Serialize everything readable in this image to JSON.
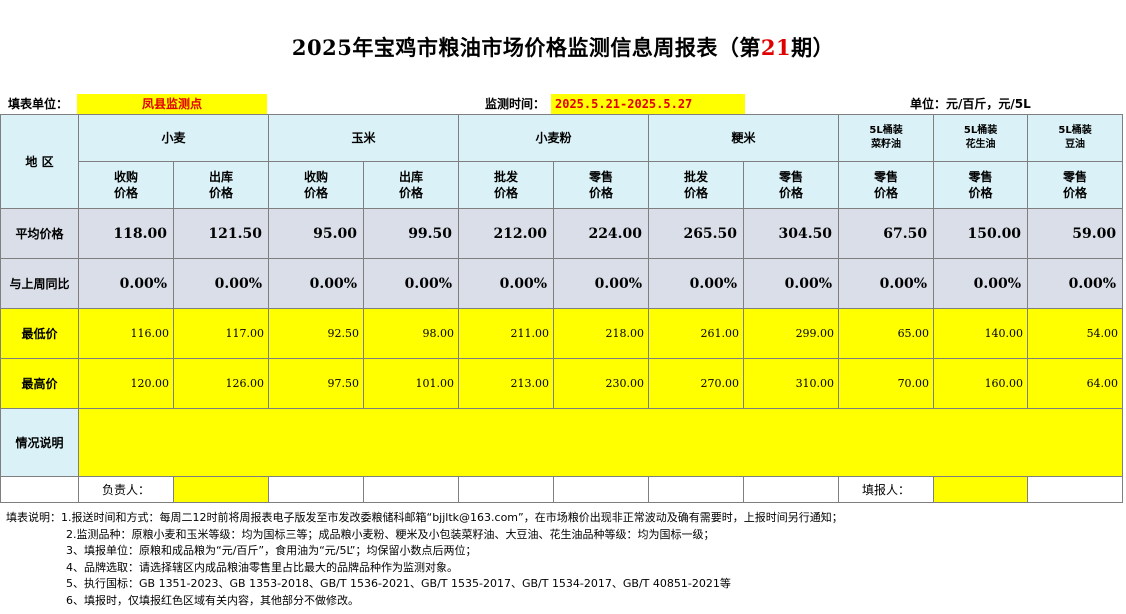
{
  "title": {
    "prefix": "2025年宝鸡市粮油市场价格监测信息周报表（第",
    "issue": "21",
    "suffix": "期）",
    "issue_color": "#e00000"
  },
  "meta": {
    "unit_label": "填表单位：",
    "unit_value": "凤县监测点",
    "period_label": "监测时间：",
    "period_value": "2025.5.21-2025.5.27",
    "measure_unit": "单位：元/百斤，元/5L"
  },
  "header": {
    "region": "地  区",
    "groups": [
      "小麦",
      "玉米",
      "小麦粉",
      "粳米"
    ],
    "oil_groups": [
      {
        "line1": "5L桶装",
        "line2": "菜籽油"
      },
      {
        "line1": "5L桶装",
        "line2": "花生油"
      },
      {
        "line1": "5L桶装",
        "line2": "豆油"
      }
    ],
    "subs": [
      {
        "line1": "收购",
        "line2": "价格"
      },
      {
        "line1": "出库",
        "line2": "价格"
      },
      {
        "line1": "收购",
        "line2": "价格"
      },
      {
        "line1": "出库",
        "line2": "价格"
      },
      {
        "line1": "批发",
        "line2": "价格"
      },
      {
        "line1": "零售",
        "line2": "价格"
      },
      {
        "line1": "批发",
        "line2": "价格"
      },
      {
        "line1": "零售",
        "line2": "价格"
      },
      {
        "line1": "零售",
        "line2": "价格"
      },
      {
        "line1": "零售",
        "line2": "价格"
      },
      {
        "line1": "零售",
        "line2": "价格"
      }
    ]
  },
  "rows": [
    {
      "label": "平均价格",
      "values": [
        "118.00",
        "121.50",
        "95.00",
        "99.50",
        "212.00",
        "224.00",
        "265.50",
        "304.50",
        "67.50",
        "150.00",
        "59.00"
      ]
    },
    {
      "label": "与上周同比",
      "values": [
        "0.00%",
        "0.00%",
        "0.00%",
        "0.00%",
        "0.00%",
        "0.00%",
        "0.00%",
        "0.00%",
        "0.00%",
        "0.00%",
        "0.00%"
      ]
    },
    {
      "label": "最低价",
      "values": [
        "116.00",
        "117.00",
        "92.50",
        "98.00",
        "211.00",
        "218.00",
        "261.00",
        "299.00",
        "65.00",
        "140.00",
        "54.00"
      ]
    },
    {
      "label": "最高价",
      "values": [
        "120.00",
        "126.00",
        "97.50",
        "101.00",
        "213.00",
        "230.00",
        "270.00",
        "310.00",
        "70.00",
        "160.00",
        "64.00"
      ]
    }
  ],
  "situation_label": "情况说明",
  "footer": {
    "responsible_label": "负责人：",
    "reporter_label": "填报人："
  },
  "notes": {
    "lead": "填表说明：",
    "items": [
      "1.报送时间和方式：每周二12时前将周报表电子版发至市发改委粮储科邮箱“bjjltk@163.com”，在市场粮价出现非正常波动及确有需要时，上报时间另行通知；",
      "2.监测品种：原粮小麦和玉米等级：均为国标三等；成品粮小麦粉、粳米及小包装菜籽油、大豆油、花生油品种等级：均为国标一级；",
      "3、填报单位：原粮和成品粮为“元/百斤”，食用油为“元/5L”；均保留小数点后两位；",
      "4、品牌选取：请选择辖区内成品粮油零售里占比最大的品牌品种作为监测对象。",
      "5、执行国标：GB 1351-2023、GB 1353-2018、GB/T 1536-2021、GB/T 1535-2017、GB/T 1534-2017、GB/T 40851-2021等",
      "6、填报时，仅填报红色区域有关内容，其他部分不做修改。"
    ]
  },
  "colors": {
    "header_bg": "#daf2f7",
    "avg_bg": "#d9dee8",
    "input_bg": "#ffff00",
    "issue_red": "#e00000"
  }
}
